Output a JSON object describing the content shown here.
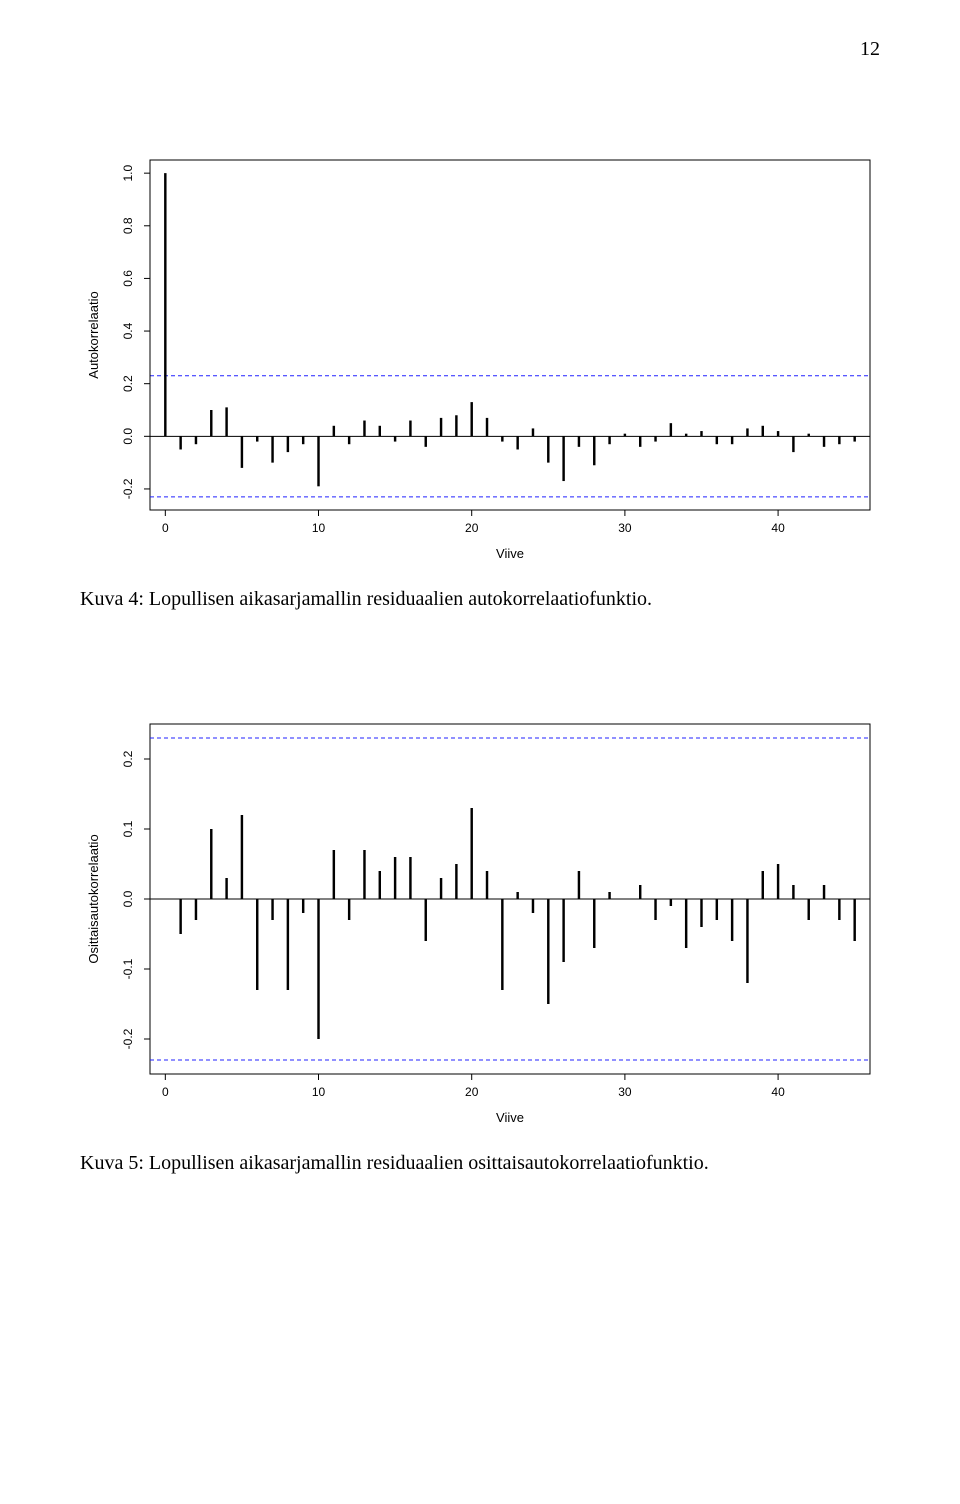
{
  "page_number": "12",
  "figure1": {
    "caption": "Kuva 4: Lopullisen aikasarjamallin residuaalien autokorrelaatiofunktio.",
    "ylabel": "Autokorrelaatio",
    "xlabel": "Viive",
    "type": "acf-bar",
    "x_min": -1,
    "x_max": 46,
    "xtick_positions": [
      0,
      10,
      20,
      30,
      40
    ],
    "xtick_labels": [
      "0",
      "10",
      "20",
      "30",
      "40"
    ],
    "ylim": [
      -0.28,
      1.05
    ],
    "ytick_positions": [
      -0.2,
      0.0,
      0.2,
      0.4,
      0.6,
      0.8,
      1.0
    ],
    "ytick_labels": [
      "-0.2",
      "0.0",
      "0.2",
      "0.4",
      "0.6",
      "0.8",
      "1.0"
    ],
    "conf_upper": 0.23,
    "conf_lower": -0.23,
    "conf_color": "#2020ff",
    "bar_color": "#000000",
    "axis_color": "#000000",
    "background": "#ffffff",
    "bar_width": 0.16,
    "axis_label_fontsize": 13,
    "tick_label_fontsize": 12,
    "lags": [
      0,
      1,
      2,
      3,
      4,
      5,
      6,
      7,
      8,
      9,
      10,
      11,
      12,
      13,
      14,
      15,
      16,
      17,
      18,
      19,
      20,
      21,
      22,
      23,
      24,
      25,
      26,
      27,
      28,
      29,
      30,
      31,
      32,
      33,
      34,
      35,
      36,
      37,
      38,
      39,
      40,
      41,
      42,
      43,
      44,
      45
    ],
    "values": [
      1.0,
      -0.05,
      -0.03,
      0.1,
      0.11,
      -0.12,
      -0.02,
      -0.1,
      -0.06,
      -0.03,
      -0.19,
      0.04,
      -0.03,
      0.06,
      0.04,
      -0.02,
      0.06,
      -0.04,
      0.07,
      0.08,
      0.13,
      0.07,
      -0.02,
      -0.05,
      0.03,
      -0.1,
      -0.17,
      -0.04,
      -0.11,
      -0.03,
      0.01,
      -0.04,
      -0.02,
      0.05,
      0.01,
      0.02,
      -0.03,
      -0.03,
      0.03,
      0.04,
      0.02,
      -0.06,
      0.01,
      -0.04,
      -0.03,
      -0.02
    ]
  },
  "figure2": {
    "caption": "Kuva 5: Lopullisen aikasarjamallin residuaalien osittaisautokorrelaatiofunktio.",
    "ylabel": "Osittaisautokorrelaatio",
    "xlabel": "Viive",
    "type": "pacf-bar",
    "x_min": -1,
    "x_max": 46,
    "xtick_positions": [
      0,
      10,
      20,
      30,
      40
    ],
    "xtick_labels": [
      "0",
      "10",
      "20",
      "30",
      "40"
    ],
    "ylim": [
      -0.25,
      0.25
    ],
    "ytick_positions": [
      -0.2,
      -0.1,
      0.0,
      0.1,
      0.2
    ],
    "ytick_labels": [
      "-0.2",
      "-0.1",
      "0.0",
      "0.1",
      "0.2"
    ],
    "conf_upper": 0.23,
    "conf_lower": -0.23,
    "conf_color": "#2020ff",
    "bar_color": "#000000",
    "axis_color": "#000000",
    "background": "#ffffff",
    "bar_width": 0.16,
    "axis_label_fontsize": 13,
    "tick_label_fontsize": 12,
    "lags": [
      1,
      2,
      3,
      4,
      5,
      6,
      7,
      8,
      9,
      10,
      11,
      12,
      13,
      14,
      15,
      16,
      17,
      18,
      19,
      20,
      21,
      22,
      23,
      24,
      25,
      26,
      27,
      28,
      29,
      30,
      31,
      32,
      33,
      34,
      35,
      36,
      37,
      38,
      39,
      40,
      41,
      42,
      43,
      44,
      45
    ],
    "values": [
      -0.05,
      -0.03,
      0.1,
      0.03,
      0.12,
      -0.13,
      -0.03,
      -0.13,
      -0.02,
      -0.2,
      0.07,
      -0.03,
      0.07,
      0.04,
      0.06,
      0.06,
      -0.06,
      0.03,
      0.05,
      0.13,
      0.04,
      -0.13,
      0.01,
      -0.02,
      -0.15,
      -0.09,
      0.04,
      -0.07,
      0.01,
      0.0,
      0.02,
      -0.03,
      -0.01,
      -0.07,
      -0.04,
      -0.03,
      -0.06,
      -0.12,
      0.04,
      0.05,
      0.02,
      -0.03,
      0.02,
      -0.03,
      -0.06
    ]
  }
}
